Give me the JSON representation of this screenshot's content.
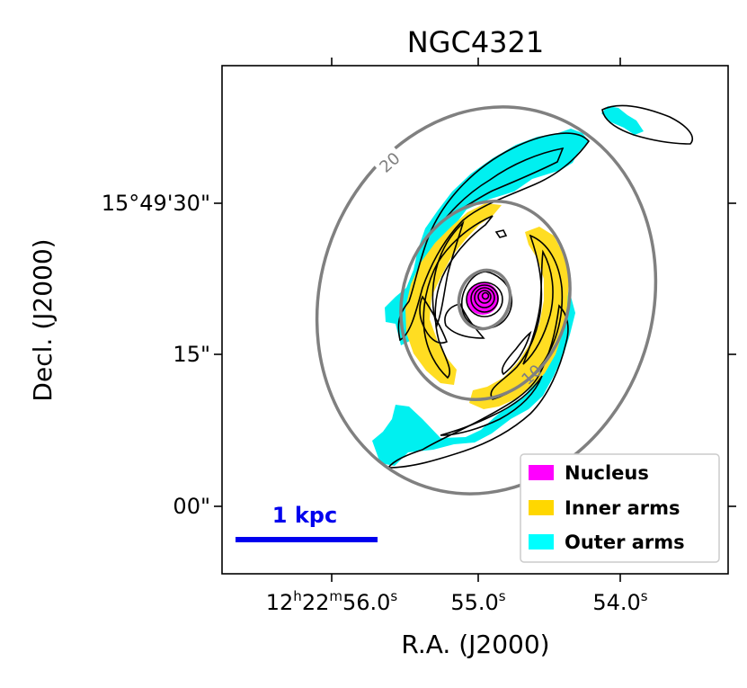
{
  "chart_data": {
    "type": "map",
    "title": "NGC4321",
    "xlabel": "R.A. (J2000)",
    "ylabel": "Decl. (J2000)",
    "x_ticks": [
      {
        "h": "12",
        "m": "22",
        "s": "56.0",
        "kind": "full"
      },
      {
        "s": "55.0",
        "kind": "sec"
      },
      {
        "s": "54.0",
        "kind": "sec"
      }
    ],
    "y_ticks": [
      "15°49'30\"",
      "15\"",
      "00\""
    ],
    "ellipse_labels": [
      "20",
      "10"
    ],
    "scale_bar": {
      "label": "1 kpc",
      "color": "#0000ee"
    },
    "legend": {
      "position": "lower-right",
      "entries": [
        {
          "label": "Nucleus",
          "color": "#ff00ff"
        },
        {
          "label": "Inner arms",
          "color": "#ffd700"
        },
        {
          "label": "Outer arms",
          "color": "#00ffff"
        }
      ]
    },
    "colors": {
      "nucleus": "#ff00ff",
      "inner_arms": "#ffdd22",
      "outer_arms": "#00f0f0",
      "ellipse": "#808080",
      "contour": "#000000"
    }
  }
}
